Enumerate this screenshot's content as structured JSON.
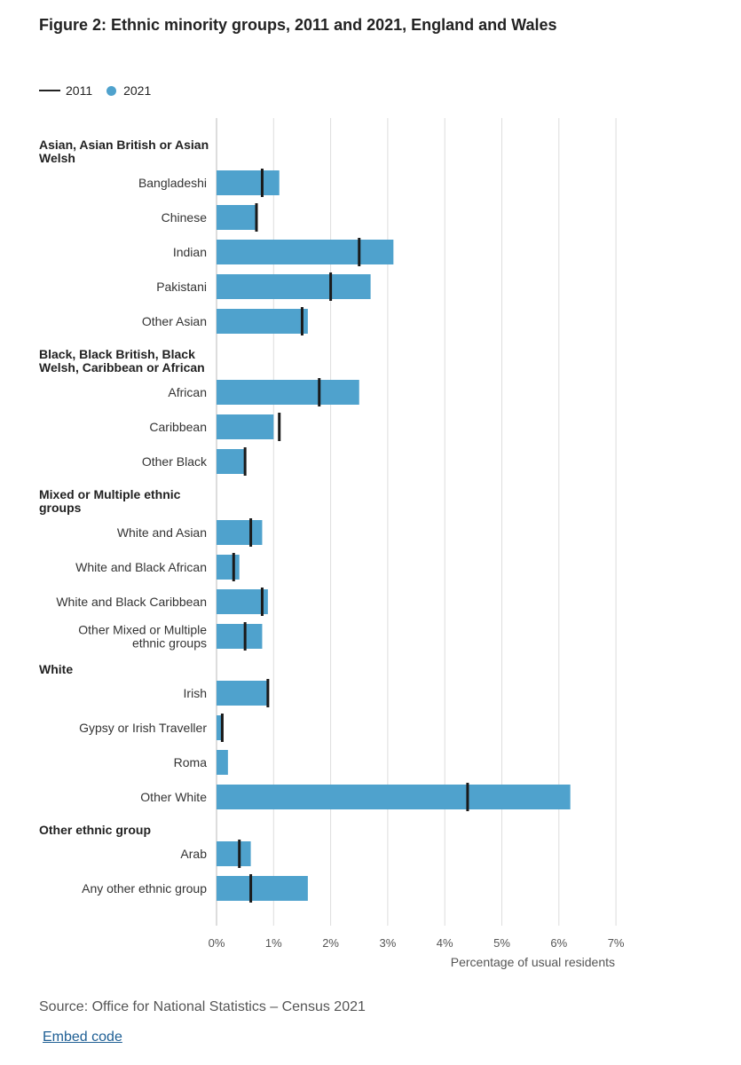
{
  "figure": {
    "title": "Figure 2: Ethnic minority groups, 2011 and 2021, England and Wales",
    "legend": {
      "line_label": "2011",
      "bar_label": "2021"
    },
    "source": "Source: Office for National Statistics – Census 2021",
    "embed_link": "Embed code"
  },
  "colors": {
    "bar_2021": "#4fa2cd",
    "marker_2011": "#1a1a1a",
    "grid": "#dddddd"
  },
  "chart_data": {
    "type": "bar",
    "orientation": "horizontal",
    "xlabel": "Percentage of usual residents",
    "xlim": [
      0,
      7
    ],
    "xticks": [
      "0%",
      "1%",
      "2%",
      "3%",
      "4%",
      "5%",
      "6%",
      "7%"
    ],
    "grid": true,
    "legend_position": "top-left",
    "series": [
      {
        "name": "2011",
        "style": "marker"
      },
      {
        "name": "2021",
        "style": "bar"
      }
    ],
    "groups": [
      {
        "name": "Asian, Asian British or Asian Welsh",
        "items": [
          {
            "label": "Bangladeshi",
            "v2021": 1.1,
            "v2011": 0.8
          },
          {
            "label": "Chinese",
            "v2021": 0.7,
            "v2011": 0.7
          },
          {
            "label": "Indian",
            "v2021": 3.1,
            "v2011": 2.5
          },
          {
            "label": "Pakistani",
            "v2021": 2.7,
            "v2011": 2.0
          },
          {
            "label": "Other Asian",
            "v2021": 1.6,
            "v2011": 1.5
          }
        ]
      },
      {
        "name": "Black, Black British, Black Welsh, Caribbean or African",
        "items": [
          {
            "label": "African",
            "v2021": 2.5,
            "v2011": 1.8
          },
          {
            "label": "Caribbean",
            "v2021": 1.0,
            "v2011": 1.1
          },
          {
            "label": "Other Black",
            "v2021": 0.5,
            "v2011": 0.5
          }
        ]
      },
      {
        "name": "Mixed or Multiple ethnic groups",
        "items": [
          {
            "label": "White and Asian",
            "v2021": 0.8,
            "v2011": 0.6
          },
          {
            "label": "White and Black African",
            "v2021": 0.4,
            "v2011": 0.3
          },
          {
            "label": "White and Black Caribbean",
            "v2021": 0.9,
            "v2011": 0.8
          },
          {
            "label": "Other Mixed or Multiple ethnic groups",
            "v2021": 0.8,
            "v2011": 0.5
          }
        ]
      },
      {
        "name": "White",
        "items": [
          {
            "label": "Irish",
            "v2021": 0.9,
            "v2011": 0.9
          },
          {
            "label": "Gypsy or Irish Traveller",
            "v2021": 0.1,
            "v2011": 0.1
          },
          {
            "label": "Roma",
            "v2021": 0.2,
            "v2011": null
          },
          {
            "label": "Other White",
            "v2021": 6.2,
            "v2011": 4.4
          }
        ]
      },
      {
        "name": "Other ethnic group",
        "items": [
          {
            "label": "Arab",
            "v2021": 0.6,
            "v2011": 0.4
          },
          {
            "label": "Any other ethnic group",
            "v2021": 1.6,
            "v2011": 0.6
          }
        ]
      }
    ]
  }
}
